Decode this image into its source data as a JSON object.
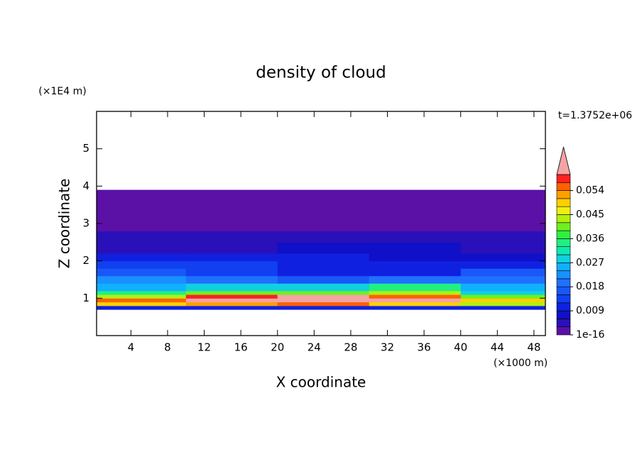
{
  "chart_data": {
    "type": "contour",
    "title": "density of cloud",
    "x_label": "X coordinate",
    "x_unit": "(×1000 m)",
    "y_label": "Z coordinate",
    "y_unit": "(×1E4 m)",
    "time_label": "t=1.3752e+06",
    "xlim": [
      0.25,
      49.25
    ],
    "xticks": [
      4,
      8,
      12,
      16,
      20,
      24,
      28,
      32,
      36,
      40,
      44,
      48
    ],
    "ylim": [
      0,
      6
    ],
    "yticks": [
      1,
      2,
      3,
      4,
      5
    ],
    "x_edges": [
      0.25,
      10,
      20,
      30,
      40,
      49.25
    ],
    "z_edges": [
      0.7,
      0.8,
      0.9,
      1.0,
      1.1,
      1.2,
      1.4,
      1.6,
      1.8,
      2.0,
      2.2,
      2.5,
      2.8,
      3.2,
      3.9
    ],
    "values": [
      [
        0.01,
        0.012,
        0.012,
        0.01,
        0.01
      ],
      [
        0.05,
        0.052,
        0.055,
        0.05,
        0.045
      ],
      [
        0.055,
        0.062,
        0.065,
        0.062,
        0.05
      ],
      [
        0.045,
        0.058,
        0.062,
        0.055,
        0.04
      ],
      [
        0.035,
        0.042,
        0.04,
        0.045,
        0.03
      ],
      [
        0.027,
        0.03,
        0.028,
        0.035,
        0.025
      ],
      [
        0.022,
        0.02,
        0.018,
        0.02,
        0.02
      ],
      [
        0.018,
        0.015,
        0.012,
        0.012,
        0.016
      ],
      [
        0.014,
        0.013,
        0.012,
        0.01,
        0.012
      ],
      [
        0.01,
        0.011,
        0.01,
        0.009,
        0.009
      ],
      [
        0.006,
        0.006,
        0.007,
        0.007,
        0.006
      ],
      [
        0.004,
        0.004,
        0.004,
        0.005,
        0.004
      ],
      [
        0.002,
        0.002,
        0.003,
        0.003,
        0.002
      ],
      [
        0.001,
        0.001,
        0.001,
        0.001,
        0.001
      ]
    ],
    "levels": [
      1e-16,
      0.003,
      0.006,
      0.009,
      0.012,
      0.015,
      0.018,
      0.021,
      0.024,
      0.027,
      0.03,
      0.033,
      0.036,
      0.039,
      0.042,
      0.045,
      0.048,
      0.051,
      0.054,
      0.057,
      0.06
    ],
    "colors": [
      "#5b10a6",
      "#2a10b8",
      "#1010c8",
      "#1020e0",
      "#1040f0",
      "#1858f8",
      "#2070ff",
      "#1890ff",
      "#10b0ff",
      "#10d0e0",
      "#10e8b0",
      "#20f080",
      "#30f040",
      "#70f020",
      "#b0f010",
      "#f0f010",
      "#ffd000",
      "#ffa000",
      "#ff6000",
      "#ff2020"
    ],
    "extend_color": "#f4a4a4",
    "colorbar_ticks": [
      1e-16,
      0.009,
      0.018,
      0.027,
      0.036,
      0.045,
      0.054
    ]
  }
}
